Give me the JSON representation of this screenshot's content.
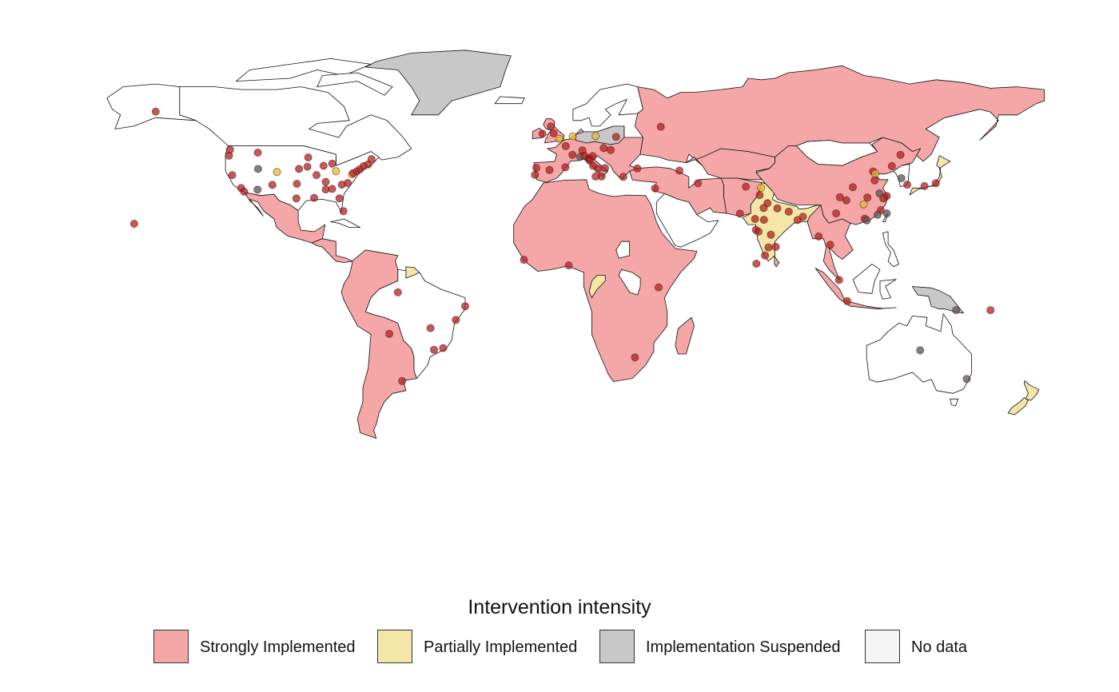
{
  "legend": {
    "title": "Intervention intensity",
    "items": [
      {
        "label": "Strongly Implemented",
        "color": "#f4a7a6"
      },
      {
        "label": "Partially Implemented",
        "color": "#f3e6a6"
      },
      {
        "label": "Implementation Suspended",
        "color": "#c8c8c8"
      },
      {
        "label": "No data",
        "color": "#f5f5f5"
      }
    ]
  },
  "point_colors": {
    "strong": "#b22222",
    "partial": "#e3bb2e",
    "suspended": "#555555"
  },
  "map_data": {
    "region_status": {
      "canada": "none",
      "usa": "none",
      "alaska": "none",
      "greenland": "suspended",
      "mexico": "strong",
      "central_america": "strong",
      "south_america_west": "strong",
      "brazil": "none",
      "guianas": "partial",
      "europe_west": "strong",
      "uk": "strong",
      "scandinavia": "none",
      "iceland": "none",
      "germany_poland": "suspended",
      "russia": "strong",
      "middle_east": "strong",
      "saudi": "none",
      "africa": "strong",
      "central_africa_west": "partial",
      "central_africa_east": "none",
      "india": "partial",
      "china": "strong",
      "mongolia": "none",
      "se_asia": "strong",
      "japan": "partial",
      "korea": "none",
      "indonesia": "strong",
      "png": "suspended",
      "australia": "none",
      "new_zealand": "partial"
    },
    "points": [
      {
        "lon": -149.9,
        "lat": 61.2,
        "status": "strong"
      },
      {
        "lon": -122.7,
        "lat": 45.5,
        "status": "strong"
      },
      {
        "lon": -112.0,
        "lat": 46.6,
        "status": "strong"
      },
      {
        "lon": -122.3,
        "lat": 47.6,
        "status": "strong"
      },
      {
        "lon": -121.5,
        "lat": 38.6,
        "status": "strong"
      },
      {
        "lon": -118.2,
        "lat": 34.0,
        "status": "strong"
      },
      {
        "lon": -117.1,
        "lat": 32.7,
        "status": "strong"
      },
      {
        "lon": -111.9,
        "lat": 40.8,
        "status": "suspended"
      },
      {
        "lon": -112.1,
        "lat": 33.4,
        "status": "suspended"
      },
      {
        "lon": -104.9,
        "lat": 39.7,
        "status": "partial"
      },
      {
        "lon": -106.6,
        "lat": 35.1,
        "status": "strong"
      },
      {
        "lon": -96.7,
        "lat": 40.8,
        "status": "strong"
      },
      {
        "lon": -97.5,
        "lat": 35.5,
        "status": "strong"
      },
      {
        "lon": -97.7,
        "lat": 30.3,
        "status": "strong"
      },
      {
        "lon": -93.3,
        "lat": 44.9,
        "status": "strong"
      },
      {
        "lon": -93.6,
        "lat": 41.6,
        "status": "strong"
      },
      {
        "lon": -90.2,
        "lat": 38.6,
        "status": "strong"
      },
      {
        "lon": -91.1,
        "lat": 30.5,
        "status": "strong"
      },
      {
        "lon": -87.6,
        "lat": 41.9,
        "status": "strong"
      },
      {
        "lon": -86.8,
        "lat": 36.2,
        "status": "strong"
      },
      {
        "lon": -86.8,
        "lat": 33.5,
        "status": "strong"
      },
      {
        "lon": -84.4,
        "lat": 42.7,
        "status": "strong"
      },
      {
        "lon": -84.4,
        "lat": 33.7,
        "status": "strong"
      },
      {
        "lon": -83.0,
        "lat": 40.0,
        "status": "partial"
      },
      {
        "lon": -81.7,
        "lat": 30.3,
        "status": "strong"
      },
      {
        "lon": -80.2,
        "lat": 25.8,
        "status": "strong"
      },
      {
        "lon": -80.8,
        "lat": 35.2,
        "status": "strong"
      },
      {
        "lon": -78.6,
        "lat": 35.8,
        "status": "strong"
      },
      {
        "lon": -77.0,
        "lat": 38.9,
        "status": "partial"
      },
      {
        "lon": -76.6,
        "lat": 39.3,
        "status": "strong"
      },
      {
        "lon": -75.2,
        "lat": 40.0,
        "status": "strong"
      },
      {
        "lon": -74.0,
        "lat": 40.7,
        "status": "strong"
      },
      {
        "lon": -72.7,
        "lat": 41.8,
        "status": "strong"
      },
      {
        "lon": -71.1,
        "lat": 42.4,
        "status": "strong"
      },
      {
        "lon": -69.8,
        "lat": 44.3,
        "status": "strong"
      },
      {
        "lon": -157.9,
        "lat": 21.3,
        "status": "strong"
      },
      {
        "lon": -58.4,
        "lat": -34.6,
        "status": "strong"
      },
      {
        "lon": -63.2,
        "lat": -17.8,
        "status": "strong"
      },
      {
        "lon": -47.9,
        "lat": -15.8,
        "status": "strong"
      },
      {
        "lon": -43.2,
        "lat": -22.9,
        "status": "strong"
      },
      {
        "lon": -46.6,
        "lat": -23.5,
        "status": "strong"
      },
      {
        "lon": -38.5,
        "lat": -12.9,
        "status": "strong"
      },
      {
        "lon": -35.0,
        "lat": -8.0,
        "status": "strong"
      },
      {
        "lon": -60.0,
        "lat": -3.1,
        "status": "strong"
      },
      {
        "lon": -0.1,
        "lat": 51.5,
        "status": "partial"
      },
      {
        "lon": -3.2,
        "lat": 55.9,
        "status": "strong"
      },
      {
        "lon": -2.2,
        "lat": 53.5,
        "status": "strong"
      },
      {
        "lon": -6.3,
        "lat": 53.3,
        "status": "strong"
      },
      {
        "lon": 4.9,
        "lat": 52.4,
        "status": "partial"
      },
      {
        "lon": 2.3,
        "lat": 48.9,
        "status": "strong"
      },
      {
        "lon": 4.8,
        "lat": 45.8,
        "status": "strong"
      },
      {
        "lon": -3.7,
        "lat": 40.4,
        "status": "strong"
      },
      {
        "lon": 2.2,
        "lat": 41.4,
        "status": "strong"
      },
      {
        "lon": -8.6,
        "lat": 41.2,
        "status": "strong"
      },
      {
        "lon": -9.1,
        "lat": 38.7,
        "status": "strong"
      },
      {
        "lon": 13.4,
        "lat": 52.5,
        "status": "partial"
      },
      {
        "lon": 7.7,
        "lat": 45.1,
        "status": "suspended"
      },
      {
        "lon": 8.5,
        "lat": 47.4,
        "status": "strong"
      },
      {
        "lon": 9.2,
        "lat": 45.5,
        "status": "strong"
      },
      {
        "lon": 10.9,
        "lat": 44.6,
        "status": "strong"
      },
      {
        "lon": 11.3,
        "lat": 44.5,
        "status": "strong"
      },
      {
        "lon": 12.3,
        "lat": 45.4,
        "status": "strong"
      },
      {
        "lon": 11.2,
        "lat": 43.8,
        "status": "strong"
      },
      {
        "lon": 12.5,
        "lat": 41.9,
        "status": "strong"
      },
      {
        "lon": 14.3,
        "lat": 40.8,
        "status": "strong"
      },
      {
        "lon": 16.9,
        "lat": 41.1,
        "status": "strong"
      },
      {
        "lon": 15.6,
        "lat": 38.1,
        "status": "strong"
      },
      {
        "lon": 13.4,
        "lat": 38.1,
        "status": "strong"
      },
      {
        "lon": 16.4,
        "lat": 48.2,
        "status": "strong"
      },
      {
        "lon": 21.0,
        "lat": 52.2,
        "status": "strong"
      },
      {
        "lon": 19.0,
        "lat": 47.5,
        "status": "strong"
      },
      {
        "lon": 23.7,
        "lat": 38.0,
        "status": "strong"
      },
      {
        "lon": 28.9,
        "lat": 41.0,
        "status": "strong"
      },
      {
        "lon": 37.6,
        "lat": 55.8,
        "status": "strong"
      },
      {
        "lon": 44.5,
        "lat": 40.2,
        "status": "strong"
      },
      {
        "lon": 35.5,
        "lat": 33.9,
        "status": "strong"
      },
      {
        "lon": 51.4,
        "lat": 35.7,
        "status": "strong"
      },
      {
        "lon": 67.0,
        "lat": 24.9,
        "status": "strong"
      },
      {
        "lon": 69.2,
        "lat": 34.5,
        "status": "strong"
      },
      {
        "lon": 74.3,
        "lat": 31.5,
        "status": "strong"
      },
      {
        "lon": 72.9,
        "lat": 19.1,
        "status": "strong"
      },
      {
        "lon": 72.6,
        "lat": 23.0,
        "status": "strong"
      },
      {
        "lon": 75.9,
        "lat": 22.7,
        "status": "strong"
      },
      {
        "lon": 77.2,
        "lat": 28.6,
        "status": "strong"
      },
      {
        "lon": 75.8,
        "lat": 26.9,
        "status": "strong"
      },
      {
        "lon": 77.6,
        "lat": 12.9,
        "status": "strong"
      },
      {
        "lon": 80.3,
        "lat": 13.1,
        "status": "strong"
      },
      {
        "lon": 78.5,
        "lat": 17.4,
        "status": "strong"
      },
      {
        "lon": 76.3,
        "lat": 10.0,
        "status": "strong"
      },
      {
        "lon": 73.9,
        "lat": 18.5,
        "status": "strong"
      },
      {
        "lon": 80.9,
        "lat": 26.8,
        "status": "strong"
      },
      {
        "lon": 85.1,
        "lat": 25.6,
        "status": "strong"
      },
      {
        "lon": 88.4,
        "lat": 22.6,
        "status": "strong"
      },
      {
        "lon": 74.8,
        "lat": 34.1,
        "status": "partial"
      },
      {
        "lon": 73.1,
        "lat": 7.1,
        "status": "strong"
      },
      {
        "lon": 90.4,
        "lat": 23.8,
        "status": "strong"
      },
      {
        "lon": 96.2,
        "lat": 16.8,
        "status": "strong"
      },
      {
        "lon": 100.5,
        "lat": 13.8,
        "status": "strong"
      },
      {
        "lon": 103.8,
        "lat": 1.3,
        "status": "strong"
      },
      {
        "lon": 106.8,
        "lat": -6.2,
        "status": "strong"
      },
      {
        "lon": 116.4,
        "lat": 39.9,
        "status": "strong"
      },
      {
        "lon": 117.2,
        "lat": 39.1,
        "status": "partial"
      },
      {
        "lon": 121.5,
        "lat": 31.2,
        "status": "strong"
      },
      {
        "lon": 120.2,
        "lat": 30.3,
        "status": "strong"
      },
      {
        "lon": 118.8,
        "lat": 32.1,
        "status": "suspended"
      },
      {
        "lon": 114.3,
        "lat": 30.6,
        "status": "strong"
      },
      {
        "lon": 113.3,
        "lat": 23.1,
        "status": "strong"
      },
      {
        "lon": 114.1,
        "lat": 22.5,
        "status": "suspended"
      },
      {
        "lon": 104.1,
        "lat": 30.7,
        "status": "strong"
      },
      {
        "lon": 106.5,
        "lat": 29.6,
        "status": "strong"
      },
      {
        "lon": 108.9,
        "lat": 34.3,
        "status": "strong"
      },
      {
        "lon": 112.9,
        "lat": 28.2,
        "status": "partial"
      },
      {
        "lon": 117.0,
        "lat": 36.7,
        "status": "strong"
      },
      {
        "lon": 123.4,
        "lat": 41.8,
        "status": "strong"
      },
      {
        "lon": 126.6,
        "lat": 45.8,
        "status": "strong"
      },
      {
        "lon": 119.3,
        "lat": 26.1,
        "status": "strong"
      },
      {
        "lon": 118.1,
        "lat": 24.5,
        "status": "suspended"
      },
      {
        "lon": 121.5,
        "lat": 25.0,
        "status": "suspended"
      },
      {
        "lon": 126.9,
        "lat": 37.5,
        "status": "suspended"
      },
      {
        "lon": 129.1,
        "lat": 35.2,
        "status": "strong"
      },
      {
        "lon": 102.7,
        "lat": 25.0,
        "status": "strong"
      },
      {
        "lon": 139.7,
        "lat": 35.7,
        "status": "strong"
      },
      {
        "lon": 135.5,
        "lat": 34.7,
        "status": "strong"
      },
      {
        "lon": 151.2,
        "lat": -33.9,
        "status": "suspended"
      },
      {
        "lon": 133.9,
        "lat": -23.7,
        "status": "suspended"
      },
      {
        "lon": 147.2,
        "lat": -9.4,
        "status": "suspended"
      },
      {
        "lon": 160.0,
        "lat": -9.4,
        "status": "strong"
      },
      {
        "lon": -13.2,
        "lat": 8.5,
        "status": "strong"
      },
      {
        "lon": 3.4,
        "lat": 6.5,
        "status": "strong"
      },
      {
        "lon": 36.8,
        "lat": -1.3,
        "status": "strong"
      },
      {
        "lon": 28.0,
        "lat": -26.2,
        "status": "strong"
      }
    ]
  }
}
